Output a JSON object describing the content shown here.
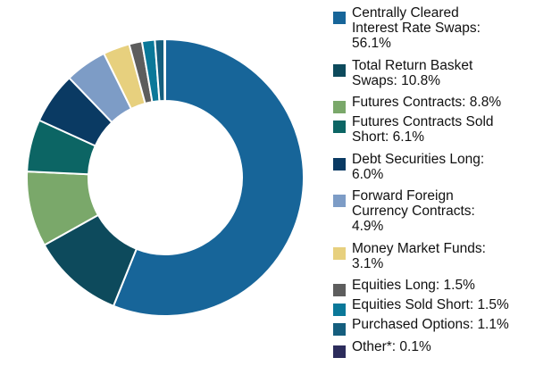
{
  "chart_data": {
    "type": "pie",
    "donut": true,
    "title": "",
    "categories": [
      "Centrally Cleared Interest Rate Swaps",
      "Total Return Basket Swaps",
      "Futures Contracts",
      "Futures Contracts Sold Short",
      "Debt Securities Long",
      "Forward Foreign Currency Contracts",
      "Money Market Funds",
      "Equities Long",
      "Equities Sold Short",
      "Purchased Options",
      "Other*"
    ],
    "values": [
      56.1,
      10.8,
      8.8,
      6.1,
      6.0,
      4.9,
      3.1,
      1.5,
      1.5,
      1.1,
      0.1
    ],
    "unit": "%",
    "colors": [
      "#176599",
      "#0d4a5c",
      "#7aa86a",
      "#0c6564",
      "#0a3a63",
      "#7d9cc6",
      "#e7d07e",
      "#5d5d5d",
      "#0a7899",
      "#155e7e",
      "#2c2c5c"
    ],
    "legend_position": "right",
    "legend": [
      {
        "text": "Centrally Cleared Interest Rate Swaps: 56.1%"
      },
      {
        "text": "Total Return Basket Swaps: 10.8%"
      },
      {
        "text": "Futures Contracts: 8.8%"
      },
      {
        "text": "Futures Contracts Sold Short: 6.1%"
      },
      {
        "text": "Debt Securities Long: 6.0%"
      },
      {
        "text": "Forward Foreign Currency Contracts: 4.9%"
      },
      {
        "text": "Money Market Funds: 3.1%"
      },
      {
        "text": "Equities Long: 1.5%"
      },
      {
        "text": "Equities Sold Short: 1.5%"
      },
      {
        "text": "Purchased Options: 1.1%"
      },
      {
        "text": "Other*: 0.1%"
      }
    ]
  }
}
